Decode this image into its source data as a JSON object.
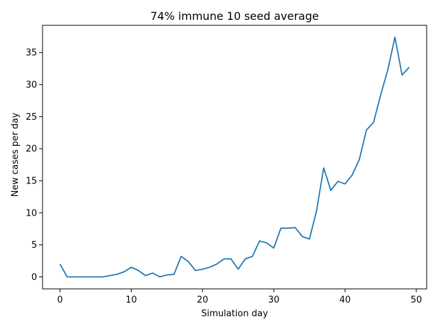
{
  "chart_data": {
    "type": "line",
    "title": "74% immune 10 seed average",
    "xlabel": "Simulation day",
    "ylabel": "New cases per day",
    "xlim": [
      -2.45,
      51.45
    ],
    "ylim": [
      -1.87,
      39.24
    ],
    "xticks": [
      0,
      10,
      20,
      30,
      40,
      50
    ],
    "yticks": [
      0,
      5,
      10,
      15,
      20,
      25,
      30,
      35
    ],
    "grid": false,
    "colors": {
      "line": "#1f77b4",
      "axes": "#000000",
      "background": "#ffffff"
    },
    "series": [
      {
        "x": [
          0,
          1,
          2,
          3,
          4,
          5,
          6,
          7,
          8,
          9,
          10,
          11,
          12,
          13,
          14,
          15,
          16,
          17,
          18,
          19,
          20,
          21,
          22,
          23,
          24,
          25,
          26,
          27,
          28,
          29,
          30,
          31,
          32,
          33,
          34,
          35,
          36,
          37,
          38,
          39,
          40,
          41,
          42,
          43,
          44,
          45,
          46,
          47,
          48,
          49
        ],
        "values": [
          2.0,
          0.0,
          0.0,
          0.0,
          0.0,
          0.0,
          0.0,
          0.2,
          0.4,
          0.8,
          1.5,
          1.0,
          0.2,
          0.6,
          0.0,
          0.3,
          0.4,
          3.2,
          2.4,
          1.0,
          1.2,
          1.5,
          2.0,
          2.8,
          2.8,
          1.2,
          2.8,
          3.2,
          5.6,
          5.3,
          4.5,
          7.6,
          7.6,
          7.7,
          6.3,
          5.9,
          10.3,
          17.0,
          13.5,
          14.9,
          14.5,
          15.9,
          18.3,
          22.9,
          24.1,
          28.4,
          32.3,
          37.4,
          31.5,
          32.7
        ]
      }
    ]
  }
}
